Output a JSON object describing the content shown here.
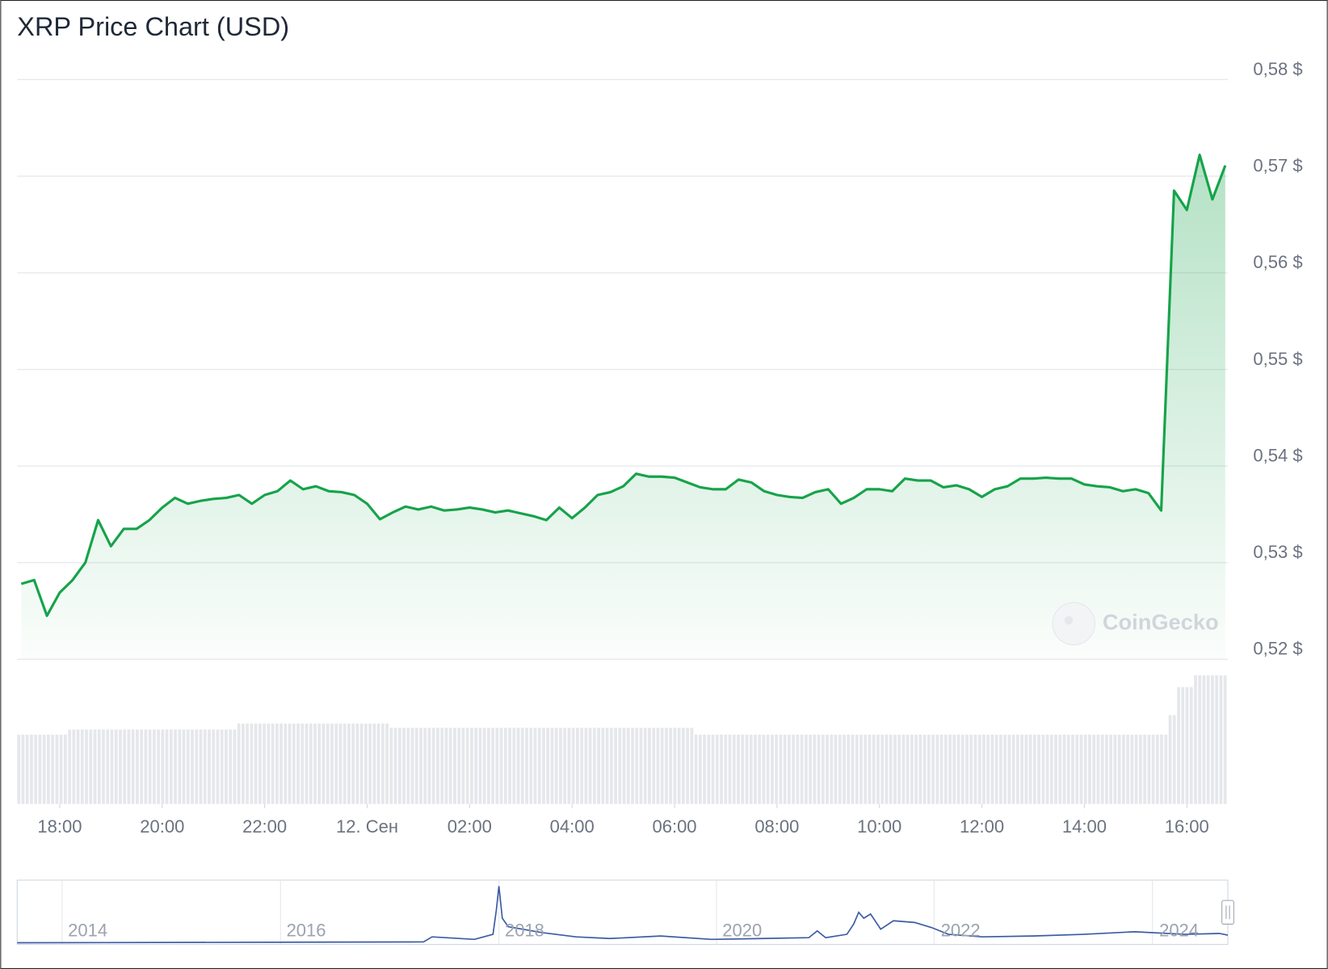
{
  "chart_data": {
    "type": "line",
    "title": "XRP Price Chart (USD)",
    "watermark": "CoinGecko",
    "color": "#16a34a",
    "grid": true,
    "xlim": [
      17.17,
      40.8
    ],
    "ylim": [
      0.52,
      0.58
    ],
    "xticks": [
      {
        "value": 18,
        "label": "18:00"
      },
      {
        "value": 20,
        "label": "20:00"
      },
      {
        "value": 22,
        "label": "22:00"
      },
      {
        "value": 24,
        "label": "12. Сен"
      },
      {
        "value": 26,
        "label": "02:00"
      },
      {
        "value": 28,
        "label": "04:00"
      },
      {
        "value": 30,
        "label": "06:00"
      },
      {
        "value": 32,
        "label": "08:00"
      },
      {
        "value": 34,
        "label": "10:00"
      },
      {
        "value": 36,
        "label": "12:00"
      },
      {
        "value": 38,
        "label": "14:00"
      },
      {
        "value": 40,
        "label": "16:00"
      }
    ],
    "yticks": [
      {
        "value": 0.52,
        "label": "0,52 $"
      },
      {
        "value": 0.53,
        "label": "0,53 $"
      },
      {
        "value": 0.54,
        "label": "0,54 $"
      },
      {
        "value": 0.55,
        "label": "0,55 $"
      },
      {
        "value": 0.56,
        "label": "0,56 $"
      },
      {
        "value": 0.57,
        "label": "0,57 $"
      },
      {
        "value": 0.58,
        "label": "0,58 $"
      }
    ],
    "x": [
      17.25,
      17.5,
      17.75,
      18,
      18.25,
      18.5,
      18.75,
      19,
      19.25,
      19.5,
      19.75,
      20,
      20.25,
      20.5,
      20.75,
      21,
      21.25,
      21.5,
      21.75,
      22,
      22.25,
      22.5,
      22.75,
      23,
      23.25,
      23.5,
      23.75,
      24,
      24.25,
      24.5,
      24.75,
      25,
      25.25,
      25.5,
      25.75,
      26,
      26.25,
      26.5,
      26.75,
      27,
      27.25,
      27.5,
      27.75,
      28,
      28.25,
      28.5,
      28.75,
      29,
      29.25,
      29.5,
      29.75,
      30,
      30.25,
      30.5,
      30.75,
      31,
      31.25,
      31.5,
      31.75,
      32,
      32.25,
      32.5,
      32.75,
      33,
      33.25,
      33.5,
      33.75,
      34,
      34.25,
      34.5,
      34.75,
      35,
      35.25,
      35.5,
      35.75,
      36,
      36.25,
      36.5,
      36.75,
      37,
      37.25,
      37.5,
      37.75,
      38,
      38.25,
      38.5,
      38.75,
      39,
      39.25,
      39.5,
      39.75,
      40,
      40.25,
      40.5,
      40.75
    ],
    "values": [
      0.5278,
      0.5282,
      0.5245,
      0.5269,
      0.5282,
      0.53,
      0.5344,
      0.5317,
      0.5335,
      0.5335,
      0.5344,
      0.5357,
      0.5367,
      0.5361,
      0.5364,
      0.5366,
      0.5367,
      0.537,
      0.5361,
      0.537,
      0.5374,
      0.5385,
      0.5376,
      0.5379,
      0.5374,
      0.5373,
      0.537,
      0.5361,
      0.5345,
      0.5352,
      0.5358,
      0.5355,
      0.5358,
      0.5354,
      0.5355,
      0.5357,
      0.5355,
      0.5352,
      0.5354,
      0.5351,
      0.5348,
      0.5344,
      0.5357,
      0.5346,
      0.5357,
      0.537,
      0.5373,
      0.5379,
      0.5392,
      0.5389,
      0.5389,
      0.5388,
      0.5383,
      0.5378,
      0.5376,
      0.5376,
      0.5386,
      0.5383,
      0.5374,
      0.537,
      0.5368,
      0.5367,
      0.5373,
      0.5376,
      0.5361,
      0.5367,
      0.5376,
      0.5376,
      0.5374,
      0.5387,
      0.5385,
      0.5385,
      0.5378,
      0.538,
      0.5376,
      0.5368,
      0.5376,
      0.5379,
      0.5387,
      0.5387,
      0.5388,
      0.5387,
      0.5387,
      0.5381,
      0.5379,
      0.5378,
      0.5374,
      0.5376,
      0.5372,
      0.5354,
      0.5685,
      0.5665,
      0.5722,
      0.5676,
      0.5711
    ],
    "navigator_labels": [
      "2014",
      "2016",
      "2018",
      "2020",
      "2022",
      "2024"
    ]
  }
}
